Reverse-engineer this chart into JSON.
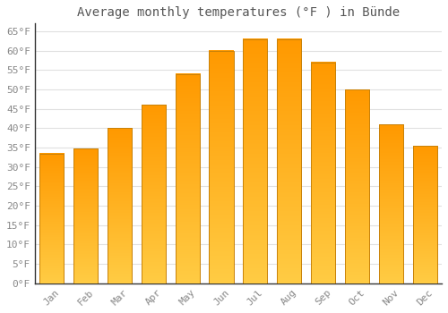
{
  "title": "Average monthly temperatures (°F ) in Bünde",
  "months": [
    "Jan",
    "Feb",
    "Mar",
    "Apr",
    "May",
    "Jun",
    "Jul",
    "Aug",
    "Sep",
    "Oct",
    "Nov",
    "Dec"
  ],
  "values": [
    33.5,
    34.7,
    40.0,
    46.0,
    54.0,
    60.0,
    63.0,
    63.0,
    57.0,
    50.0,
    41.0,
    35.5
  ],
  "bar_color_top": "#FFB700",
  "bar_color_bottom": "#FFCC44",
  "bar_color_left": "#FFD060",
  "bar_outline": "#C8820A",
  "ylim": [
    0,
    67
  ],
  "yticks": [
    0,
    5,
    10,
    15,
    20,
    25,
    30,
    35,
    40,
    45,
    50,
    55,
    60,
    65
  ],
  "ytick_labels": [
    "0°F",
    "5°F",
    "10°F",
    "15°F",
    "20°F",
    "25°F",
    "30°F",
    "35°F",
    "40°F",
    "45°F",
    "50°F",
    "55°F",
    "60°F",
    "65°F"
  ],
  "background_color": "#ffffff",
  "grid_color": "#e0e0e0",
  "title_fontsize": 10,
  "tick_fontsize": 8
}
